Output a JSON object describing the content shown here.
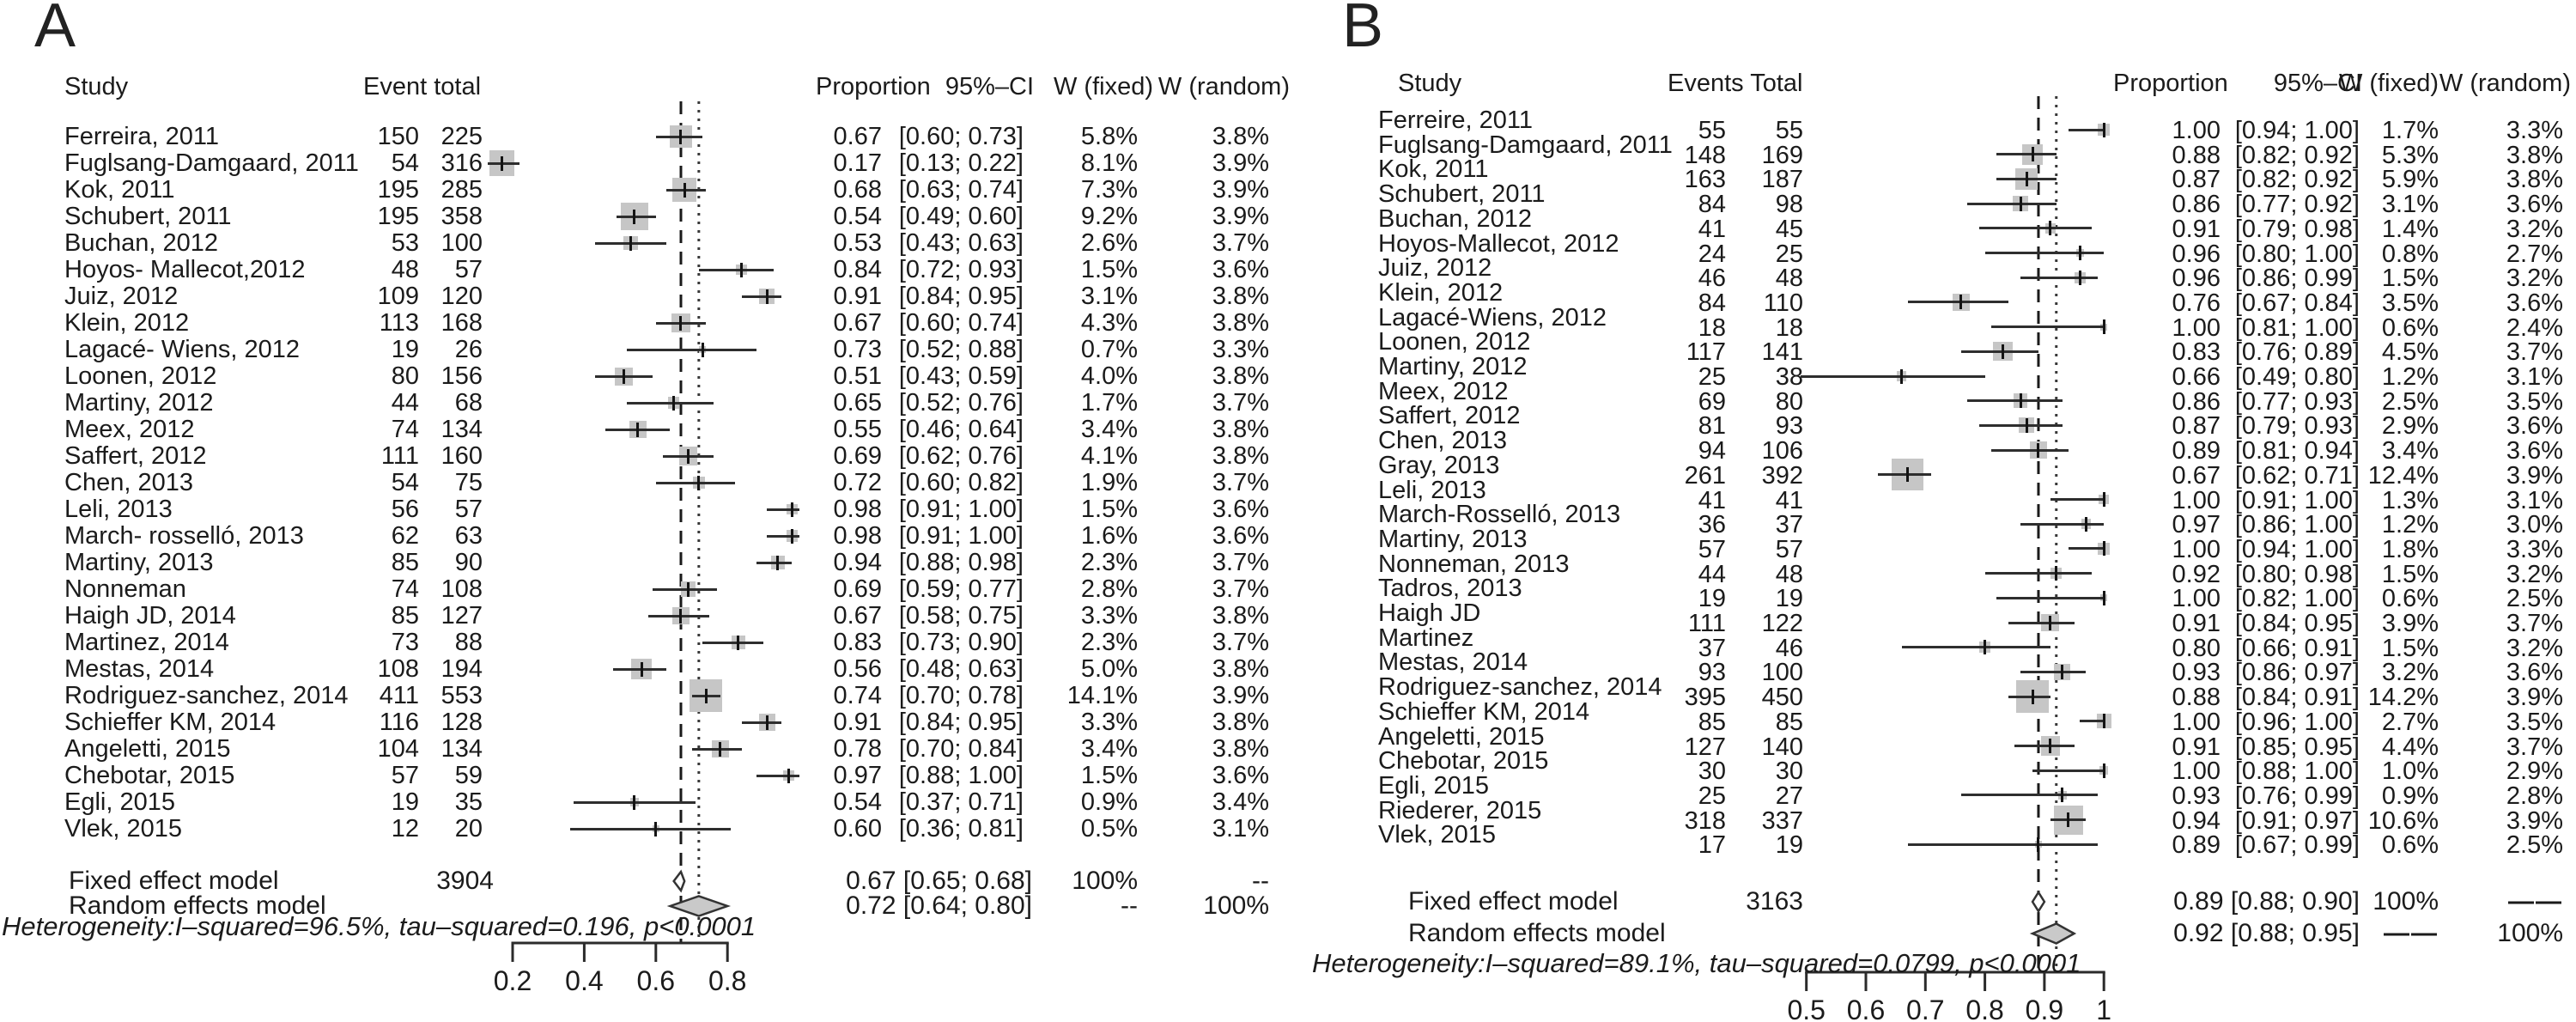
{
  "chart_data": [
    {
      "type": "forest",
      "panel": "A",
      "headers": {
        "study": "Study",
        "events_total": "Event total",
        "proportion": "Proportion",
        "ci": "95%–CI",
        "w_fixed": "W (fixed)",
        "w_random": "W (random)"
      },
      "studies": [
        {
          "name": "Ferreira, 2011",
          "events": 150,
          "total": 225,
          "prop": 0.67,
          "lo": 0.6,
          "hi": 0.73,
          "wf": 5.8,
          "wr": 3.8
        },
        {
          "name": "Fuglsang-Damgaard, 2011",
          "events": 54,
          "total": 316,
          "prop": 0.17,
          "lo": 0.13,
          "hi": 0.22,
          "wf": 8.1,
          "wr": 3.9
        },
        {
          "name": "Kok, 2011",
          "events": 195,
          "total": 285,
          "prop": 0.68,
          "lo": 0.63,
          "hi": 0.74,
          "wf": 7.3,
          "wr": 3.9
        },
        {
          "name": "Schubert, 2011",
          "events": 195,
          "total": 358,
          "prop": 0.54,
          "lo": 0.49,
          "hi": 0.6,
          "wf": 9.2,
          "wr": 3.9
        },
        {
          "name": "Buchan, 2012",
          "events": 53,
          "total": 100,
          "prop": 0.53,
          "lo": 0.43,
          "hi": 0.63,
          "wf": 2.6,
          "wr": 3.7
        },
        {
          "name": "Hoyos- Mallecot,2012",
          "events": 48,
          "total": 57,
          "prop": 0.84,
          "lo": 0.72,
          "hi": 0.93,
          "wf": 1.5,
          "wr": 3.6
        },
        {
          "name": "Juiz, 2012",
          "events": 109,
          "total": 120,
          "prop": 0.91,
          "lo": 0.84,
          "hi": 0.95,
          "wf": 3.1,
          "wr": 3.8
        },
        {
          "name": "Klein, 2012",
          "events": 113,
          "total": 168,
          "prop": 0.67,
          "lo": 0.6,
          "hi": 0.74,
          "wf": 4.3,
          "wr": 3.8
        },
        {
          "name": "Lagacé- Wiens, 2012",
          "events": 19,
          "total": 26,
          "prop": 0.73,
          "lo": 0.52,
          "hi": 0.88,
          "wf": 0.7,
          "wr": 3.3
        },
        {
          "name": "Loonen, 2012",
          "events": 80,
          "total": 156,
          "prop": 0.51,
          "lo": 0.43,
          "hi": 0.59,
          "wf": 4.0,
          "wr": 3.8
        },
        {
          "name": "Martiny, 2012",
          "events": 44,
          "total": 68,
          "prop": 0.65,
          "lo": 0.52,
          "hi": 0.76,
          "wf": 1.7,
          "wr": 3.7
        },
        {
          "name": "Meex, 2012",
          "events": 74,
          "total": 134,
          "prop": 0.55,
          "lo": 0.46,
          "hi": 0.64,
          "wf": 3.4,
          "wr": 3.8
        },
        {
          "name": "Saffert, 2012",
          "events": 111,
          "total": 160,
          "prop": 0.69,
          "lo": 0.62,
          "hi": 0.76,
          "wf": 4.1,
          "wr": 3.8
        },
        {
          "name": "Chen, 2013",
          "events": 54,
          "total": 75,
          "prop": 0.72,
          "lo": 0.6,
          "hi": 0.82,
          "wf": 1.9,
          "wr": 3.7
        },
        {
          "name": "Leli, 2013",
          "events": 56,
          "total": 57,
          "prop": 0.98,
          "lo": 0.91,
          "hi": 1.0,
          "wf": 1.5,
          "wr": 3.6
        },
        {
          "name": "March- rosselló, 2013",
          "events": 62,
          "total": 63,
          "prop": 0.98,
          "lo": 0.91,
          "hi": 1.0,
          "wf": 1.6,
          "wr": 3.6
        },
        {
          "name": "Martiny, 2013",
          "events": 85,
          "total": 90,
          "prop": 0.94,
          "lo": 0.88,
          "hi": 0.98,
          "wf": 2.3,
          "wr": 3.7
        },
        {
          "name": "Nonneman",
          "events": 74,
          "total": 108,
          "prop": 0.69,
          "lo": 0.59,
          "hi": 0.77,
          "wf": 2.8,
          "wr": 3.7
        },
        {
          "name": "Haigh JD, 2014",
          "events": 85,
          "total": 127,
          "prop": 0.67,
          "lo": 0.58,
          "hi": 0.75,
          "wf": 3.3,
          "wr": 3.8
        },
        {
          "name": "Martinez, 2014",
          "events": 73,
          "total": 88,
          "prop": 0.83,
          "lo": 0.73,
          "hi": 0.9,
          "wf": 2.3,
          "wr": 3.7
        },
        {
          "name": "Mestas, 2014",
          "events": 108,
          "total": 194,
          "prop": 0.56,
          "lo": 0.48,
          "hi": 0.63,
          "wf": 5.0,
          "wr": 3.8
        },
        {
          "name": "Rodriguez-sanchez, 2014",
          "events": 411,
          "total": 553,
          "prop": 0.74,
          "lo": 0.7,
          "hi": 0.78,
          "wf": 14.1,
          "wr": 3.9
        },
        {
          "name": "Schieffer KM, 2014",
          "events": 116,
          "total": 128,
          "prop": 0.91,
          "lo": 0.84,
          "hi": 0.95,
          "wf": 3.3,
          "wr": 3.8
        },
        {
          "name": "Angeletti, 2015",
          "events": 104,
          "total": 134,
          "prop": 0.78,
          "lo": 0.7,
          "hi": 0.84,
          "wf": 3.4,
          "wr": 3.8
        },
        {
          "name": "Chebotar, 2015",
          "events": 57,
          "total": 59,
          "prop": 0.97,
          "lo": 0.88,
          "hi": 1.0,
          "wf": 1.5,
          "wr": 3.6
        },
        {
          "name": "Egli, 2015",
          "events": 19,
          "total": 35,
          "prop": 0.54,
          "lo": 0.37,
          "hi": 0.71,
          "wf": 0.9,
          "wr": 3.4
        },
        {
          "name": "Vlek, 2015",
          "events": 12,
          "total": 20,
          "prop": 0.6,
          "lo": 0.36,
          "hi": 0.81,
          "wf": 0.5,
          "wr": 3.1
        }
      ],
      "fixed_row": {
        "label": "Fixed effect model",
        "total": 3904,
        "est": 0.67,
        "lo": 0.65,
        "hi": 0.68,
        "w_fixed": "100%",
        "w_random": "--"
      },
      "random_row": {
        "label": "Random effects model",
        "est": 0.72,
        "lo": 0.64,
        "hi": 0.8,
        "w_fixed": "--",
        "w_random": "100%"
      },
      "heterogeneity": "Heterogeneity:I–squared=96.5%, tau–squared=0.196, p<0.0001",
      "axis_ticks": [
        0.2,
        0.4,
        0.6,
        0.8
      ],
      "axis_labels": [
        "0.2",
        "0.4",
        "0.6",
        "0.8"
      ],
      "xlim": [
        0.2,
        0.8
      ]
    },
    {
      "type": "forest",
      "panel": "B",
      "headers": {
        "study": "Study",
        "events_total": "Events Total",
        "proportion": "Proportion",
        "ci": "95%–CI",
        "w_fixed": "W (fixed)",
        "w_random": "W (random)"
      },
      "studies": [
        {
          "name": "Ferreire, 2011",
          "events": 55,
          "total": 55,
          "prop": 1.0,
          "lo": 0.94,
          "hi": 1.0,
          "wf": 1.7,
          "wr": 3.3
        },
        {
          "name": "Fuglsang-Damgaard, 2011",
          "events": 148,
          "total": 169,
          "prop": 0.88,
          "lo": 0.82,
          "hi": 0.92,
          "wf": 5.3,
          "wr": 3.8
        },
        {
          "name": "Kok, 2011",
          "events": 163,
          "total": 187,
          "prop": 0.87,
          "lo": 0.82,
          "hi": 0.92,
          "wf": 5.9,
          "wr": 3.8
        },
        {
          "name": "Schubert, 2011",
          "events": 84,
          "total": 98,
          "prop": 0.86,
          "lo": 0.77,
          "hi": 0.92,
          "wf": 3.1,
          "wr": 3.6
        },
        {
          "name": "Buchan, 2012",
          "events": 41,
          "total": 45,
          "prop": 0.91,
          "lo": 0.79,
          "hi": 0.98,
          "wf": 1.4,
          "wr": 3.2
        },
        {
          "name": "Hoyos-Mallecot, 2012",
          "events": 24,
          "total": 25,
          "prop": 0.96,
          "lo": 0.8,
          "hi": 1.0,
          "wf": 0.8,
          "wr": 2.7
        },
        {
          "name": "Juiz, 2012",
          "events": 46,
          "total": 48,
          "prop": 0.96,
          "lo": 0.86,
          "hi": 0.99,
          "wf": 1.5,
          "wr": 3.2
        },
        {
          "name": "Klein, 2012",
          "events": 84,
          "total": 110,
          "prop": 0.76,
          "lo": 0.67,
          "hi": 0.84,
          "wf": 3.5,
          "wr": 3.6
        },
        {
          "name": "Lagacé-Wiens, 2012",
          "events": 18,
          "total": 18,
          "prop": 1.0,
          "lo": 0.81,
          "hi": 1.0,
          "wf": 0.6,
          "wr": 2.4
        },
        {
          "name": "Loonen, 2012",
          "events": 117,
          "total": 141,
          "prop": 0.83,
          "lo": 0.76,
          "hi": 0.89,
          "wf": 4.5,
          "wr": 3.7
        },
        {
          "name": "Martiny, 2012",
          "events": 25,
          "total": 38,
          "prop": 0.66,
          "lo": 0.49,
          "hi": 0.8,
          "wf": 1.2,
          "wr": 3.1
        },
        {
          "name": "Meex, 2012",
          "events": 69,
          "total": 80,
          "prop": 0.86,
          "lo": 0.77,
          "hi": 0.93,
          "wf": 2.5,
          "wr": 3.5
        },
        {
          "name": "Saffert, 2012",
          "events": 81,
          "total": 93,
          "prop": 0.87,
          "lo": 0.79,
          "hi": 0.93,
          "wf": 2.9,
          "wr": 3.6
        },
        {
          "name": "Chen, 2013",
          "events": 94,
          "total": 106,
          "prop": 0.89,
          "lo": 0.81,
          "hi": 0.94,
          "wf": 3.4,
          "wr": 3.6
        },
        {
          "name": "Gray, 2013",
          "events": 261,
          "total": 392,
          "prop": 0.67,
          "lo": 0.62,
          "hi": 0.71,
          "wf": 12.4,
          "wr": 3.9
        },
        {
          "name": "Leli, 2013",
          "events": 41,
          "total": 41,
          "prop": 1.0,
          "lo": 0.91,
          "hi": 1.0,
          "wf": 1.3,
          "wr": 3.1
        },
        {
          "name": "March-Rosselló, 2013",
          "events": 36,
          "total": 37,
          "prop": 0.97,
          "lo": 0.86,
          "hi": 1.0,
          "wf": 1.2,
          "wr": 3.0
        },
        {
          "name": "Martiny, 2013",
          "events": 57,
          "total": 57,
          "prop": 1.0,
          "lo": 0.94,
          "hi": 1.0,
          "wf": 1.8,
          "wr": 3.3
        },
        {
          "name": "Nonneman, 2013",
          "events": 44,
          "total": 48,
          "prop": 0.92,
          "lo": 0.8,
          "hi": 0.98,
          "wf": 1.5,
          "wr": 3.2
        },
        {
          "name": "Tadros, 2013",
          "events": 19,
          "total": 19,
          "prop": 1.0,
          "lo": 0.82,
          "hi": 1.0,
          "wf": 0.6,
          "wr": 2.5
        },
        {
          "name": "Haigh JD",
          "events": 111,
          "total": 122,
          "prop": 0.91,
          "lo": 0.84,
          "hi": 0.95,
          "wf": 3.9,
          "wr": 3.7
        },
        {
          "name": "Martinez",
          "events": 37,
          "total": 46,
          "prop": 0.8,
          "lo": 0.66,
          "hi": 0.91,
          "wf": 1.5,
          "wr": 3.2
        },
        {
          "name": "Mestas, 2014",
          "events": 93,
          "total": 100,
          "prop": 0.93,
          "lo": 0.86,
          "hi": 0.97,
          "wf": 3.2,
          "wr": 3.6
        },
        {
          "name": "Rodriguez-sanchez, 2014",
          "events": 395,
          "total": 450,
          "prop": 0.88,
          "lo": 0.84,
          "hi": 0.91,
          "wf": 14.2,
          "wr": 3.9
        },
        {
          "name": "Schieffer KM, 2014",
          "events": 85,
          "total": 85,
          "prop": 1.0,
          "lo": 0.96,
          "hi": 1.0,
          "wf": 2.7,
          "wr": 3.5
        },
        {
          "name": "Angeletti, 2015",
          "events": 127,
          "total": 140,
          "prop": 0.91,
          "lo": 0.85,
          "hi": 0.95,
          "wf": 4.4,
          "wr": 3.7
        },
        {
          "name": "Chebotar, 2015",
          "events": 30,
          "total": 30,
          "prop": 1.0,
          "lo": 0.88,
          "hi": 1.0,
          "wf": 1.0,
          "wr": 2.9
        },
        {
          "name": "Egli, 2015",
          "events": 25,
          "total": 27,
          "prop": 0.93,
          "lo": 0.76,
          "hi": 0.99,
          "wf": 0.9,
          "wr": 2.8
        },
        {
          "name": "Riederer, 2015",
          "events": 318,
          "total": 337,
          "prop": 0.94,
          "lo": 0.91,
          "hi": 0.97,
          "wf": 10.6,
          "wr": 3.9
        },
        {
          "name": "Vlek, 2015",
          "events": 17,
          "total": 19,
          "prop": 0.89,
          "lo": 0.67,
          "hi": 0.99,
          "wf": 0.6,
          "wr": 2.5
        }
      ],
      "fixed_row": {
        "label": "Fixed effect model",
        "total": 3163,
        "est": 0.89,
        "lo": 0.88,
        "hi": 0.9,
        "w_fixed": "100%",
        "w_random": "——"
      },
      "random_row": {
        "label": "Random effects model",
        "est": 0.92,
        "lo": 0.88,
        "hi": 0.95,
        "w_fixed": "——",
        "w_random": "100%"
      },
      "heterogeneity": "Heterogeneity:I–squared=89.1%, tau–squared=0.0799, p<0.0001",
      "axis_ticks": [
        0.5,
        0.6,
        0.7,
        0.8,
        0.9,
        1.0
      ],
      "axis_labels": [
        "0.5",
        "0.6",
        "0.7",
        "0.8",
        "0.9",
        "1"
      ],
      "xlim": [
        0.5,
        1.0
      ]
    }
  ]
}
